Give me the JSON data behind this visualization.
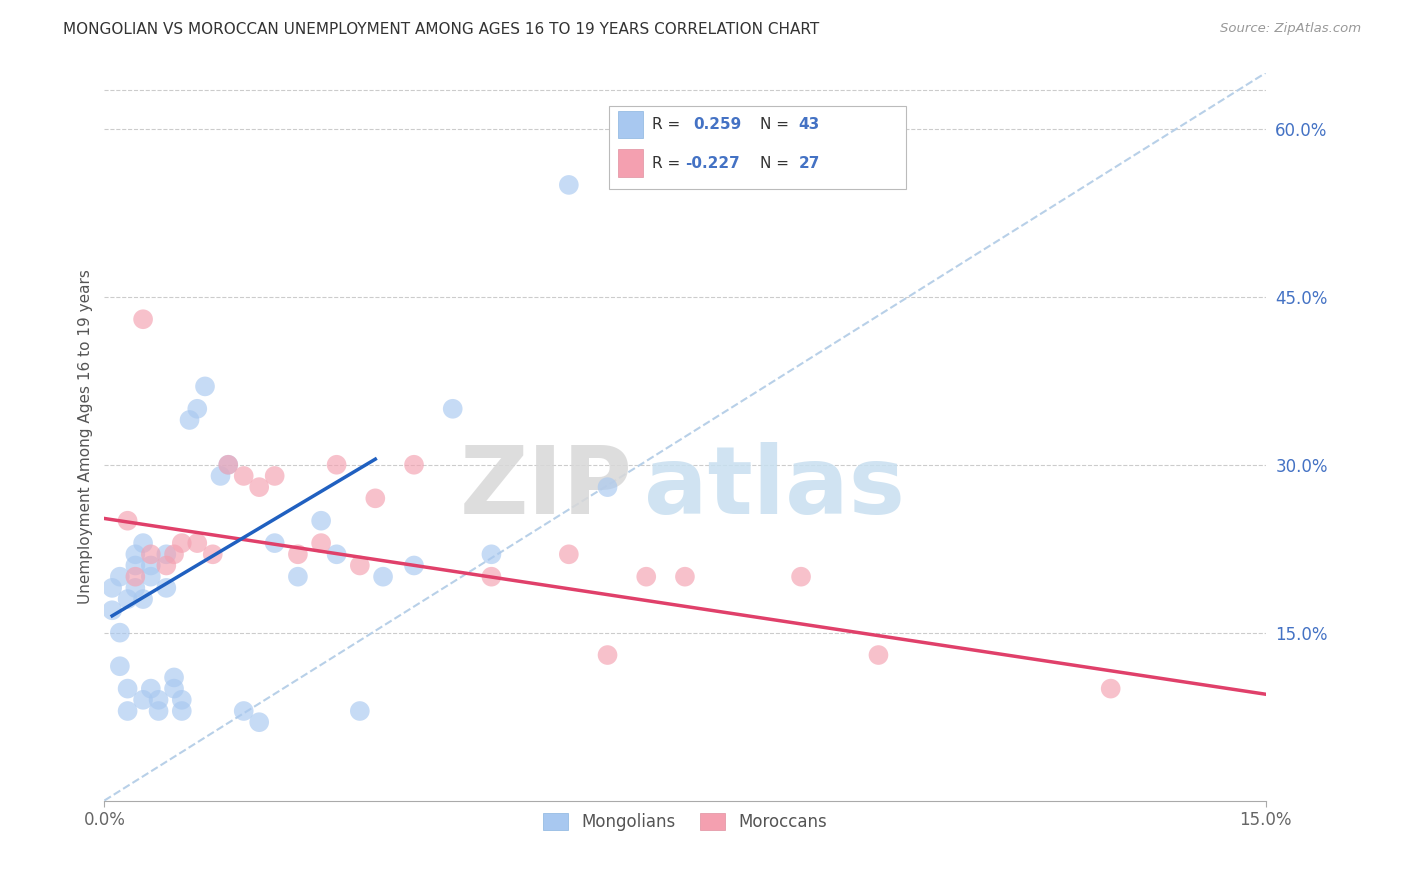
{
  "title": "MONGOLIAN VS MOROCCAN UNEMPLOYMENT AMONG AGES 16 TO 19 YEARS CORRELATION CHART",
  "source": "Source: ZipAtlas.com",
  "ylabel": "Unemployment Among Ages 16 to 19 years",
  "xlim": [
    0.0,
    0.15
  ],
  "ylim": [
    0.0,
    0.65
  ],
  "y_ticks_right": [
    0.15,
    0.3,
    0.45,
    0.6
  ],
  "y_tick_labels_right": [
    "15.0%",
    "30.0%",
    "45.0%",
    "60.0%"
  ],
  "mongolian_color": "#a8c8f0",
  "moroccan_color": "#f4a0b0",
  "mongolian_line_color": "#2060c0",
  "moroccan_line_color": "#e0406a",
  "dashed_line_color": "#b8d0e8",
  "watermark_zip": "ZIP",
  "watermark_atlas": "atlas",
  "mongolian_x": [
    0.001,
    0.001,
    0.002,
    0.002,
    0.002,
    0.003,
    0.003,
    0.003,
    0.004,
    0.004,
    0.004,
    0.005,
    0.005,
    0.005,
    0.006,
    0.006,
    0.006,
    0.007,
    0.007,
    0.008,
    0.008,
    0.009,
    0.009,
    0.01,
    0.01,
    0.011,
    0.012,
    0.013,
    0.015,
    0.016,
    0.018,
    0.02,
    0.022,
    0.025,
    0.028,
    0.03,
    0.033,
    0.036,
    0.04,
    0.045,
    0.05,
    0.06,
    0.065
  ],
  "mongolian_y": [
    0.19,
    0.17,
    0.2,
    0.15,
    0.12,
    0.18,
    0.1,
    0.08,
    0.19,
    0.21,
    0.22,
    0.23,
    0.18,
    0.09,
    0.2,
    0.21,
    0.1,
    0.08,
    0.09,
    0.19,
    0.22,
    0.1,
    0.11,
    0.08,
    0.09,
    0.34,
    0.35,
    0.37,
    0.29,
    0.3,
    0.08,
    0.07,
    0.23,
    0.2,
    0.25,
    0.22,
    0.08,
    0.2,
    0.21,
    0.35,
    0.22,
    0.55,
    0.28
  ],
  "moroccan_x": [
    0.003,
    0.004,
    0.005,
    0.006,
    0.008,
    0.009,
    0.01,
    0.012,
    0.014,
    0.016,
    0.018,
    0.02,
    0.022,
    0.025,
    0.028,
    0.03,
    0.033,
    0.035,
    0.04,
    0.05,
    0.06,
    0.065,
    0.07,
    0.075,
    0.09,
    0.1,
    0.13
  ],
  "moroccan_y": [
    0.25,
    0.2,
    0.43,
    0.22,
    0.21,
    0.22,
    0.23,
    0.23,
    0.22,
    0.3,
    0.29,
    0.28,
    0.29,
    0.22,
    0.23,
    0.3,
    0.21,
    0.27,
    0.3,
    0.2,
    0.22,
    0.13,
    0.2,
    0.2,
    0.2,
    0.13,
    0.1
  ],
  "mongolian_line_x": [
    0.001,
    0.035
  ],
  "mongolian_line_y": [
    0.165,
    0.305
  ],
  "moroccan_line_x": [
    0.0,
    0.15
  ],
  "moroccan_line_y": [
    0.252,
    0.095
  ],
  "dash_line_x": [
    0.0,
    0.15
  ],
  "dash_line_y": [
    0.0,
    0.65
  ]
}
